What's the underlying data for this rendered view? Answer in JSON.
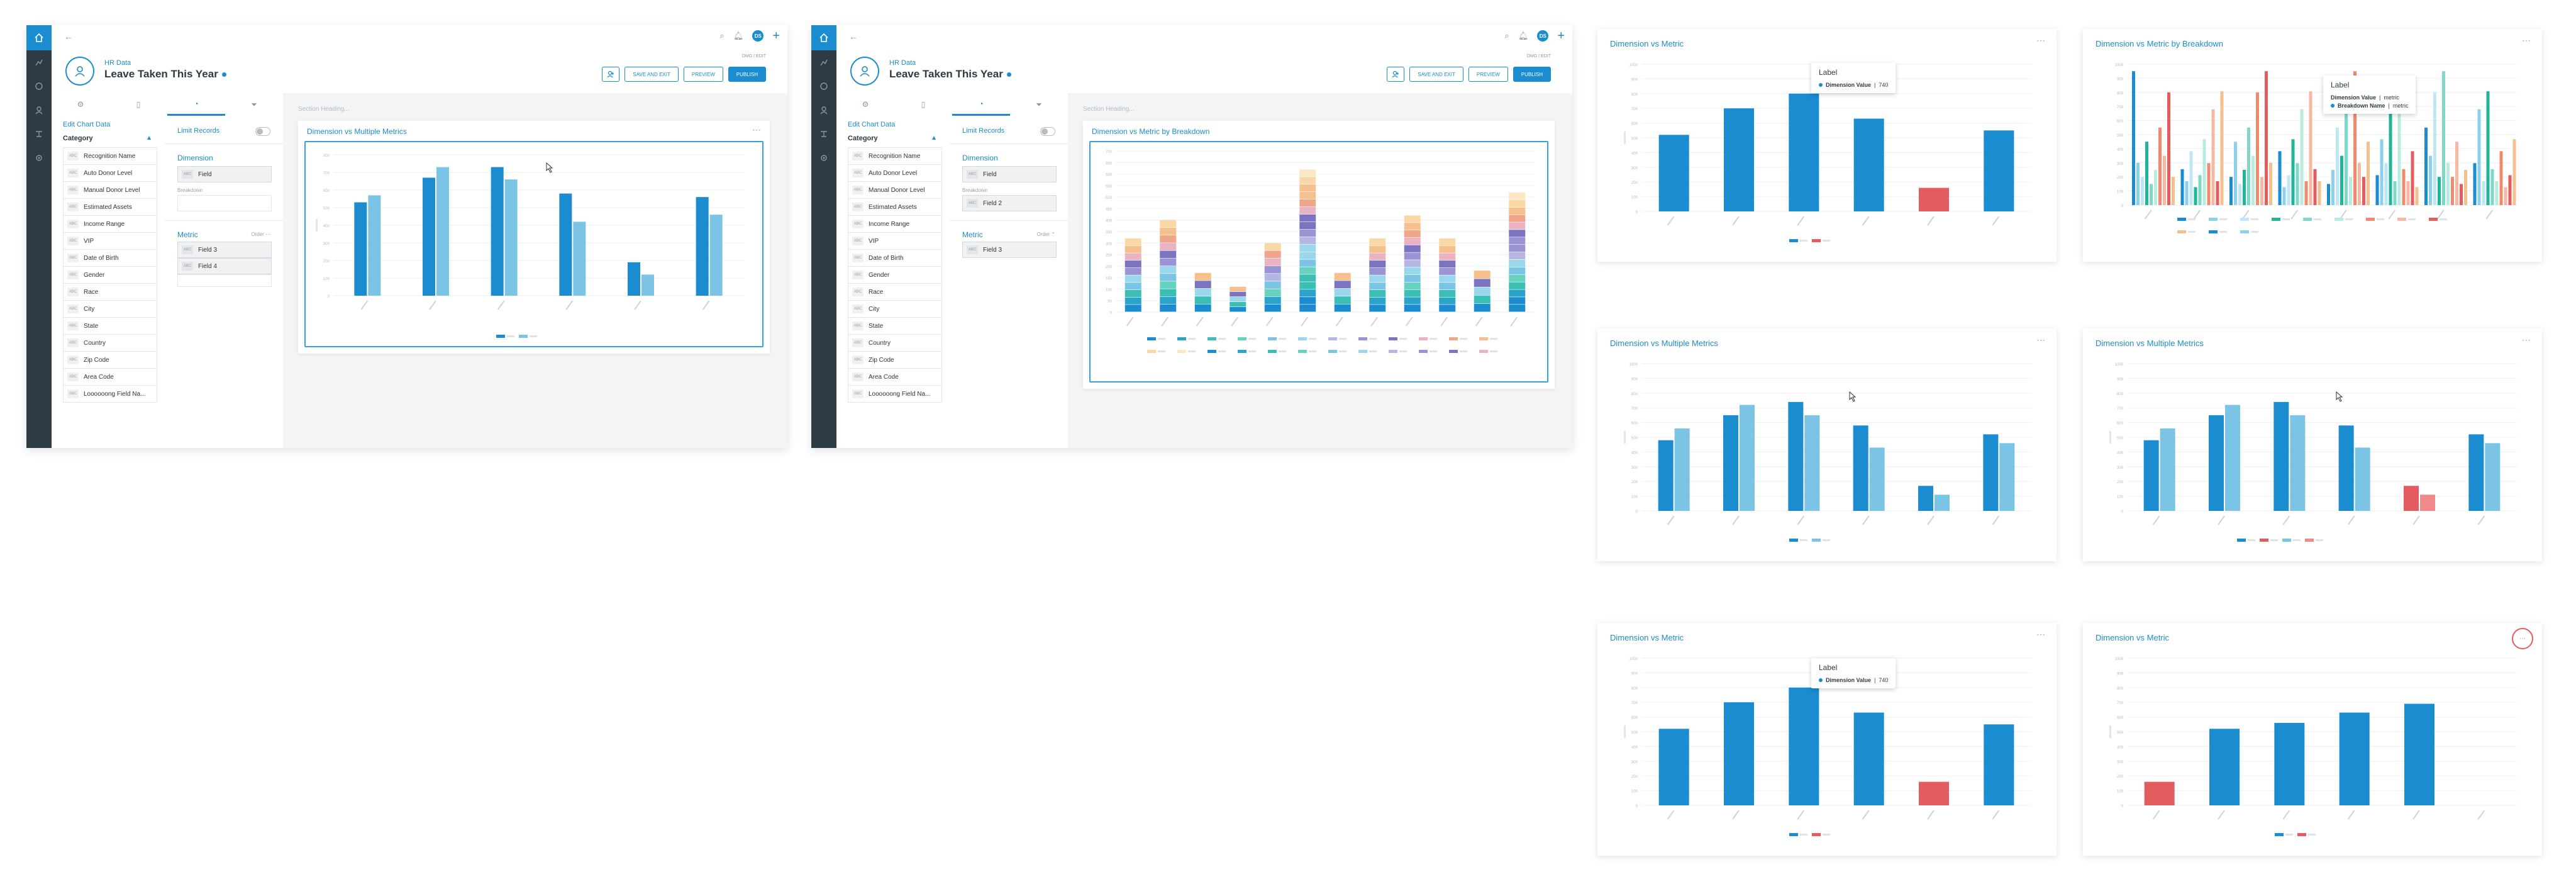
{
  "colors": {
    "accent": "#1a8ccf",
    "dark": "#52bce5",
    "light": "#8dd0ec",
    "red": "#e35d60",
    "rail": "#2d3b44"
  },
  "app": {
    "breadcrumb": "HR Data",
    "title": "Leave Taken This Year",
    "header_date": "DMG / EDIT",
    "avatar": "DS",
    "buttons": {
      "save_exit": "SAVE AND EXIT",
      "preview": "PREVIEW",
      "publish": "PUBLISH"
    },
    "edit_chart_data": "Edit Chart Data",
    "category": "Category",
    "section_heading": "Section Heading...",
    "fields": [
      "Recognition Name",
      "Auto Donor Level",
      "Manual Donor Level",
      "Estimated Assets",
      "Income Range",
      "VIP",
      "Date of Birth",
      "Gender",
      "Race",
      "City",
      "State",
      "Country",
      "Zip Code",
      "Area Code",
      "Loooooong Field Na..."
    ],
    "field_type": "ABC",
    "limit_records": "Limit Records",
    "dimension": "Dimension",
    "breakdown": "Breakdown",
    "metric": "Metric",
    "order": "Order"
  },
  "screen1": {
    "chart_title": "Dimension vs Multiple Metrics",
    "dimension_field": "Field",
    "metric_fields": [
      "Field 3",
      "Field 4"
    ]
  },
  "screen2": {
    "chart_title": "Dimension vs Metric by Breakdown",
    "dimension_field": "Field",
    "breakdown_field": "Field 2",
    "metric_field": "Field 3"
  },
  "panels": {
    "p1_title": "Dimension vs Metric",
    "p2_title": "Dimension vs Metric by Breakdown",
    "p3_title": "Dimension vs Multiple Metrics",
    "p4_title": "Dimension vs Multiple Metrics",
    "p5_title": "Dimension vs Metric",
    "p6_title": "Dimension vs Metric"
  },
  "tooltips": {
    "t1": {
      "label": "Label",
      "name": "Dimension Value",
      "value": "740"
    },
    "t2": {
      "label": "Label",
      "row1_name": "Dimension Value",
      "row1_value": "metric",
      "row2_name": "Breakdown Name",
      "row2_value": "metric"
    },
    "t3": {
      "label": "Label",
      "name": "Dimension Value",
      "value": "740"
    }
  },
  "chart_data": [
    {
      "type": "bar",
      "id": "s1",
      "categories": [
        "",
        "",
        "",
        "",
        "",
        ""
      ],
      "series": [
        {
          "values": [
            530,
            670,
            730,
            580,
            190,
            560
          ]
        },
        {
          "values": [
            570,
            730,
            660,
            420,
            120,
            460
          ]
        }
      ],
      "ylim": [
        0,
        800
      ]
    },
    {
      "type": "bar",
      "id": "s2",
      "categories": [
        "",
        "",
        "",
        "",
        "",
        "",
        "",
        "",
        "",
        "",
        "",
        ""
      ],
      "stacked": true,
      "values": [
        320,
        400,
        170,
        110,
        300,
        620,
        170,
        320,
        420,
        320,
        180,
        520
      ],
      "ylim": [
        0,
        700
      ]
    },
    {
      "type": "bar",
      "id": "p1",
      "categories": [
        "",
        "",
        "",
        "",
        "",
        ""
      ],
      "values": [
        520,
        700,
        800,
        630,
        160,
        550
      ],
      "highlight": [
        4
      ],
      "ylim": [
        0,
        1000
      ]
    },
    {
      "type": "bar",
      "id": "p2",
      "categories": [
        "",
        "",
        "",
        "",
        "",
        "",
        "",
        ""
      ],
      "groups": 8,
      "ylim": [
        0,
        1000
      ]
    },
    {
      "type": "bar",
      "id": "p3",
      "categories": [
        "",
        "",
        "",
        "",
        "",
        ""
      ],
      "series": [
        {
          "values": [
            480,
            650,
            740,
            580,
            170,
            520
          ]
        },
        {
          "values": [
            560,
            720,
            650,
            430,
            110,
            460
          ]
        }
      ],
      "ylim": [
        0,
        1000
      ]
    },
    {
      "type": "bar",
      "id": "p4",
      "categories": [
        "",
        "",
        "",
        "",
        "",
        ""
      ],
      "series": [
        {
          "values": [
            480,
            650,
            740,
            580,
            170,
            520
          ]
        },
        {
          "values": [
            560,
            720,
            650,
            430,
            110,
            460
          ]
        }
      ],
      "highlight": [
        4
      ],
      "ylim": [
        0,
        1000
      ]
    },
    {
      "type": "bar",
      "id": "p5",
      "categories": [
        "",
        "",
        "",
        "",
        "",
        ""
      ],
      "values": [
        520,
        700,
        800,
        630,
        160,
        550
      ],
      "highlight": [
        4
      ],
      "ylim": [
        0,
        1000
      ]
    },
    {
      "type": "bar",
      "id": "p6",
      "categories": [
        "",
        "",
        "",
        "",
        "",
        ""
      ],
      "values": [
        160,
        520,
        560,
        630,
        690,
        0
      ],
      "highlight": [
        0
      ],
      "ylim": [
        0,
        1000
      ]
    }
  ]
}
